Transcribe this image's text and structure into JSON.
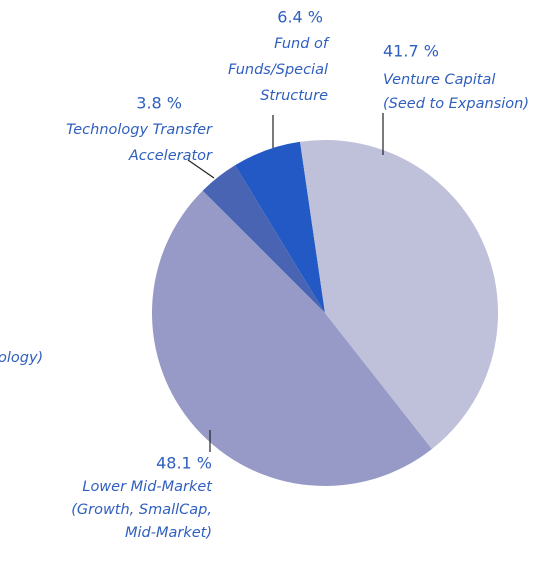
{
  "chart_data": {
    "type": "pie",
    "categories": [
      [
        "Venture Capital",
        "(Seed to Expansion)"
      ],
      [
        "Lower Mid-Market",
        "(Growth, SmallCap,",
        "Mid-Market)"
      ],
      [
        "Technology Transfer",
        "Accelerator"
      ],
      [
        "Fund of",
        "Funds/Special",
        "Structure"
      ]
    ],
    "values": [
      41.7,
      48.1,
      3.8,
      6.4
    ],
    "value_labels": [
      "41.7 %",
      "48.1 %",
      "3.8 %",
      "6.4 %"
    ],
    "colors": [
      "#bfc0d9",
      "#979ac6",
      "#4a64b4",
      "#2259c4"
    ],
    "annotations": [
      "ology)"
    ]
  }
}
